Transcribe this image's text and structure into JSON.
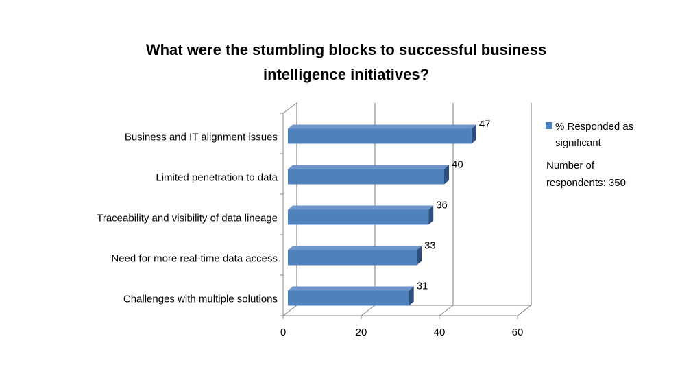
{
  "chart_data": {
    "type": "bar",
    "orientation": "horizontal",
    "title": "What were the stumbling blocks to successful business intelligence initiatives?",
    "categories": [
      "Business and IT alignment issues",
      "Limited penetration to data",
      "Traceability and visibility of data lineage",
      "Need for more real-time data access",
      "Challenges with multiple solutions"
    ],
    "series": [
      {
        "name": "% Responded as significant",
        "color": "#4f81bd",
        "values": [
          47,
          40,
          36,
          33,
          31
        ]
      }
    ],
    "annotation": "Number of respondents: 350",
    "xlim": [
      0,
      60
    ],
    "xticks": [
      0,
      20,
      40,
      60
    ],
    "grid": true
  }
}
